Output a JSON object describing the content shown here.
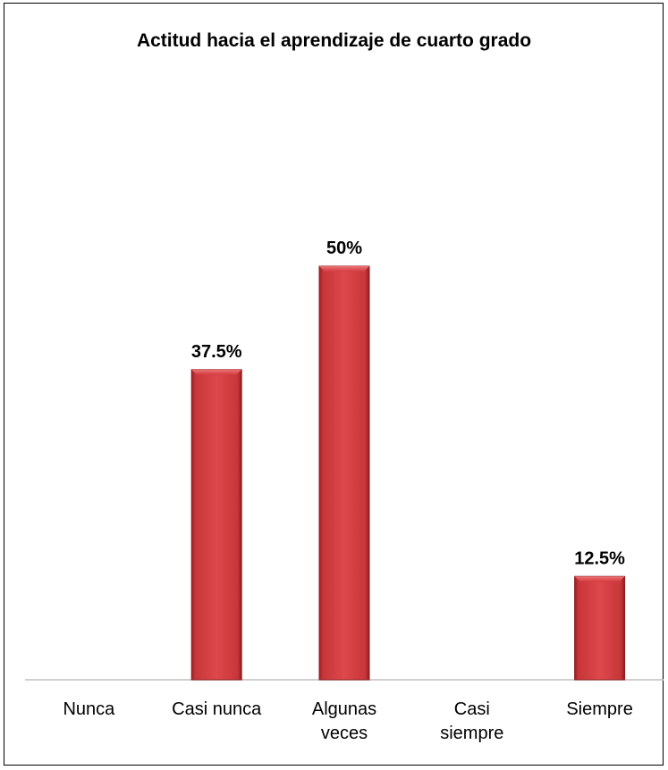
{
  "chart_data": {
    "type": "bar",
    "title": "Actitud hacia el aprendizaje de cuarto grado",
    "categories": [
      "Nunca",
      "Casi nunca",
      "Algunas veces",
      "Casi siempre",
      "Siempre"
    ],
    "category_lines": [
      [
        "Nunca"
      ],
      [
        "Casi nunca"
      ],
      [
        "Algunas",
        "veces"
      ],
      [
        "Casi",
        "siempre"
      ],
      [
        "Siempre"
      ]
    ],
    "values": [
      0,
      37.5,
      50,
      0,
      12.5
    ],
    "data_labels": [
      "",
      "37.5%",
      "50%",
      "",
      "12.5%"
    ],
    "ylim": [
      0,
      60
    ],
    "grid": false,
    "legend": "none",
    "bar_color": "#d23a3e",
    "bar_color_dark": "#8e1c20"
  }
}
